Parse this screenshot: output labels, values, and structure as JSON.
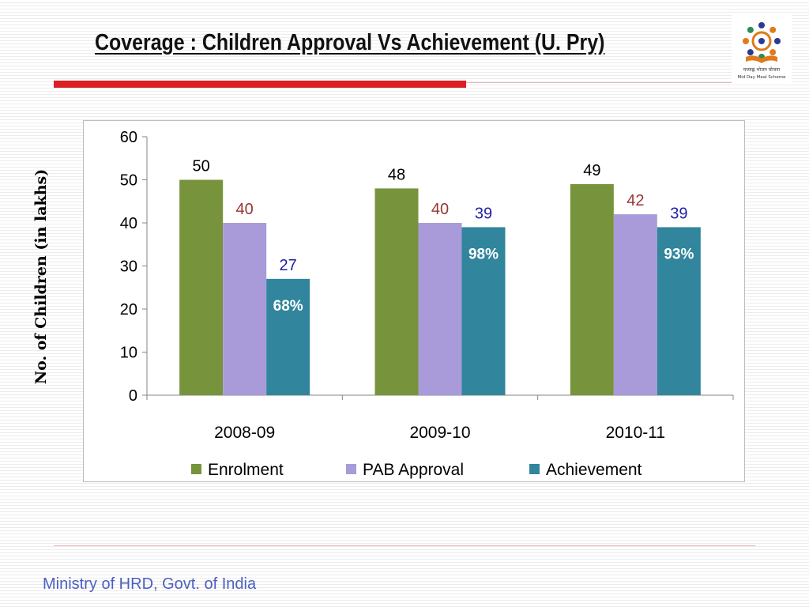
{
  "slide": {
    "title": "Coverage : Children Approval Vs Achievement (U. Pry)",
    "footer": "Ministry of HRD, Govt. of India",
    "logo_caption": "मध्याह्न भोजन योजना",
    "logo_subcaption": "Mid Day Meal Scheme"
  },
  "colors": {
    "enrolment": "#77933c",
    "pab_approval": "#a99bd9",
    "achievement": "#31859c",
    "pab_label": "#953735",
    "achievement_label": "#1f1fa8",
    "accent_red": "#dc1f26"
  },
  "chart_data": {
    "type": "bar",
    "categories": [
      "2008-09",
      "2009-10",
      "2010-11"
    ],
    "series": [
      {
        "name": "Enrolment",
        "values": [
          50,
          48,
          49
        ]
      },
      {
        "name": "PAB Approval",
        "values": [
          40,
          40,
          42
        ]
      },
      {
        "name": "Achievement",
        "values": [
          27,
          39,
          39
        ]
      }
    ],
    "annotations": [
      "68%",
      "98%",
      "93%"
    ],
    "title": "",
    "xlabel": "",
    "ylabel": "No. of Children (in lakhs)",
    "ylim": [
      0,
      60
    ],
    "yticks": [
      0,
      10,
      20,
      30,
      40,
      50,
      60
    ],
    "grid": false,
    "legend": "bottom"
  }
}
